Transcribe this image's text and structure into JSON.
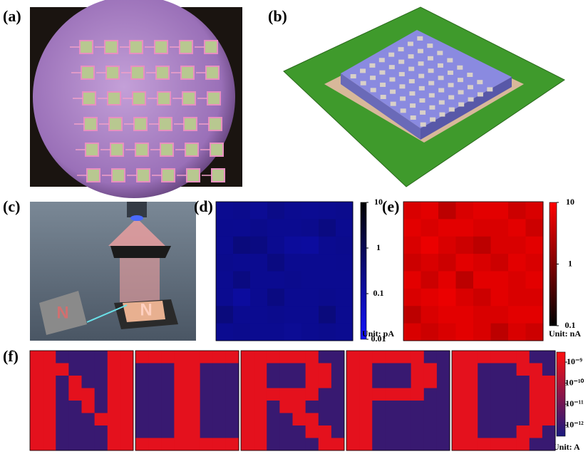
{
  "panels": [
    {
      "label": "(a)"
    },
    {
      "label": "(b)"
    },
    {
      "label": "(c)",
      "illustration_texts": [
        "N",
        "N"
      ]
    },
    {
      "label": "(d)",
      "colorbar": {
        "colors": [
          "#1414ff",
          "#000000"
        ],
        "clim": [
          0.01,
          10
        ],
        "log": true,
        "ticks": [
          10,
          1,
          0.1,
          0.01
        ],
        "unit": "Unit: pA"
      },
      "grid": [
        [
          0.2,
          0.22,
          0.18,
          0.25,
          0.2,
          0.19,
          0.2,
          0.22
        ],
        [
          0.21,
          0.2,
          0.23,
          0.2,
          0.2,
          0.22,
          0.3,
          0.2
        ],
        [
          0.2,
          0.35,
          0.3,
          0.2,
          0.15,
          0.14,
          0.2,
          0.22
        ],
        [
          0.22,
          0.2,
          0.2,
          0.3,
          0.2,
          0.2,
          0.2,
          0.21
        ],
        [
          0.2,
          0.3,
          0.2,
          0.2,
          0.22,
          0.2,
          0.2,
          0.2
        ],
        [
          0.2,
          0.14,
          0.2,
          0.3,
          0.2,
          0.2,
          0.22,
          0.2
        ],
        [
          0.35,
          0.2,
          0.2,
          0.22,
          0.2,
          0.2,
          0.35,
          0.2
        ],
        [
          0.2,
          0.22,
          0.2,
          0.2,
          0.18,
          0.2,
          0.22,
          0.2
        ]
      ]
    },
    {
      "label": "(e)",
      "colorbar": {
        "colors": [
          "#000000",
          "#ff0000"
        ],
        "clim": [
          0.1,
          10
        ],
        "log": true,
        "ticks": [
          10,
          1,
          0.1
        ],
        "unit": "Unit: nA"
      },
      "grid": [
        [
          5,
          6,
          3,
          5,
          6,
          6,
          4,
          5
        ],
        [
          6,
          5,
          6,
          6,
          5,
          5,
          6,
          4
        ],
        [
          5,
          7,
          5,
          4,
          3,
          5,
          5,
          6
        ],
        [
          4,
          5,
          4,
          6,
          5,
          4,
          6,
          5
        ],
        [
          6,
          4,
          6,
          3,
          6,
          6,
          5,
          6
        ],
        [
          5,
          6,
          7,
          5,
          4,
          6,
          5,
          5
        ],
        [
          3,
          5,
          6,
          6,
          5,
          5,
          6,
          6
        ],
        [
          5,
          4,
          5,
          6,
          5,
          3,
          5,
          4
        ]
      ]
    },
    {
      "label": "(f)",
      "colorbar": {
        "colors": [
          "#1a1a80",
          "#ff1010"
        ],
        "clim": [
          3e-13,
          3e-09
        ],
        "log": true,
        "ticks": [
          {
            "value": 1e-09,
            "label": "10⁻⁹"
          },
          {
            "value": 1e-10,
            "label": "10⁻¹⁰"
          },
          {
            "value": 1e-11,
            "label": "10⁻¹¹"
          },
          {
            "value": 1e-12,
            "label": "10⁻¹²"
          }
        ],
        "unit": "Unit: A"
      },
      "maps": [
        [
          [
            1e-09,
            1e-09,
            1e-12,
            1e-12,
            1e-12,
            1e-12,
            1e-09,
            1e-09
          ],
          [
            1e-09,
            1e-09,
            1e-09,
            1e-12,
            1e-12,
            1e-12,
            1e-09,
            1e-09
          ],
          [
            1e-09,
            1e-09,
            1e-12,
            1e-09,
            1e-12,
            1e-12,
            1e-09,
            1e-09
          ],
          [
            1e-09,
            1e-09,
            1e-12,
            1e-09,
            1e-09,
            1e-12,
            1e-09,
            1e-09
          ],
          [
            1e-09,
            1e-09,
            1e-12,
            1e-12,
            1e-09,
            1e-12,
            1e-09,
            1e-09
          ],
          [
            1e-09,
            1e-09,
            1e-12,
            1e-12,
            1e-12,
            1e-09,
            1e-09,
            1e-09
          ],
          [
            1e-09,
            1e-09,
            1e-12,
            1e-12,
            1e-12,
            1e-12,
            1e-09,
            1e-09
          ],
          [
            1e-09,
            1e-09,
            1e-12,
            1e-12,
            1e-12,
            1e-12,
            1e-09,
            1e-09
          ]
        ],
        [
          [
            1e-09,
            1e-09,
            1e-09,
            1e-09,
            1e-09,
            1e-09,
            1e-09,
            1e-09
          ],
          [
            1e-12,
            1e-12,
            1e-12,
            1e-09,
            1e-09,
            1e-12,
            1e-12,
            1e-12
          ],
          [
            1e-12,
            1e-12,
            1e-12,
            1e-09,
            1e-09,
            1e-12,
            1e-12,
            1e-12
          ],
          [
            1e-12,
            1e-12,
            1e-12,
            1e-09,
            1e-09,
            1e-12,
            1e-12,
            1e-12
          ],
          [
            1e-12,
            1e-12,
            1e-12,
            1e-09,
            1e-09,
            1e-12,
            1e-12,
            1e-12
          ],
          [
            1e-12,
            1e-12,
            1e-12,
            1e-09,
            1e-09,
            1e-12,
            1e-12,
            1e-12
          ],
          [
            1e-12,
            1e-12,
            1e-12,
            1e-09,
            1e-09,
            1e-12,
            1e-12,
            1e-12
          ],
          [
            1e-09,
            1e-09,
            1e-09,
            1e-09,
            1e-09,
            1e-09,
            1e-09,
            1e-09
          ]
        ],
        [
          [
            1e-09,
            1e-09,
            1e-09,
            1e-09,
            1e-09,
            1e-09,
            1e-12,
            1e-12
          ],
          [
            1e-09,
            1e-09,
            1e-12,
            1e-12,
            1e-12,
            1e-09,
            1e-09,
            1e-12
          ],
          [
            1e-09,
            1e-09,
            1e-12,
            1e-12,
            1e-12,
            1e-09,
            1e-09,
            1e-12
          ],
          [
            1e-09,
            1e-09,
            1e-09,
            1e-09,
            1e-09,
            1e-09,
            1e-12,
            1e-12
          ],
          [
            1e-09,
            1e-09,
            1e-12,
            1e-09,
            1e-09,
            1e-12,
            1e-12,
            1e-12
          ],
          [
            1e-09,
            1e-09,
            1e-12,
            1e-12,
            1e-09,
            1e-09,
            1e-12,
            1e-12
          ],
          [
            1e-09,
            1e-09,
            1e-12,
            1e-12,
            1e-12,
            1e-09,
            1e-09,
            1e-12
          ],
          [
            1e-09,
            1e-09,
            1e-12,
            1e-12,
            1e-12,
            1e-12,
            1e-09,
            1e-09
          ]
        ],
        [
          [
            1e-09,
            1e-09,
            1e-09,
            1e-09,
            1e-09,
            1e-09,
            1e-12,
            1e-12
          ],
          [
            1e-09,
            1e-09,
            1e-12,
            1e-12,
            1e-12,
            1e-09,
            1e-09,
            1e-12
          ],
          [
            1e-09,
            1e-09,
            1e-12,
            1e-12,
            1e-12,
            1e-09,
            1e-09,
            1e-12
          ],
          [
            1e-09,
            1e-09,
            1e-09,
            1e-09,
            1e-09,
            1e-09,
            1e-12,
            1e-12
          ],
          [
            1e-09,
            1e-09,
            1e-12,
            1e-12,
            1e-12,
            1e-12,
            1e-12,
            1e-12
          ],
          [
            1e-09,
            1e-09,
            1e-12,
            1e-12,
            1e-12,
            1e-12,
            1e-12,
            1e-12
          ],
          [
            1e-09,
            1e-09,
            1e-12,
            1e-12,
            1e-12,
            1e-12,
            1e-12,
            1e-12
          ],
          [
            1e-09,
            1e-09,
            1e-12,
            1e-12,
            1e-12,
            1e-12,
            1e-12,
            1e-12
          ]
        ],
        [
          [
            1e-09,
            1e-09,
            1e-09,
            1e-09,
            1e-09,
            1e-09,
            1e-12,
            1e-12
          ],
          [
            1e-09,
            1e-09,
            1e-12,
            1e-12,
            1e-12,
            1e-09,
            1e-09,
            1e-12
          ],
          [
            1e-09,
            1e-09,
            1e-12,
            1e-12,
            1e-12,
            1e-12,
            1e-09,
            1e-09
          ],
          [
            1e-09,
            1e-09,
            1e-12,
            1e-12,
            1e-12,
            1e-12,
            1e-09,
            1e-09
          ],
          [
            1e-09,
            1e-09,
            1e-12,
            1e-12,
            1e-12,
            1e-12,
            1e-09,
            1e-09
          ],
          [
            1e-09,
            1e-09,
            1e-12,
            1e-12,
            1e-12,
            1e-12,
            1e-09,
            1e-09
          ],
          [
            1e-09,
            1e-09,
            1e-12,
            1e-12,
            1e-12,
            1e-09,
            1e-09,
            1e-12
          ],
          [
            1e-09,
            1e-09,
            1e-09,
            1e-09,
            1e-09,
            1e-09,
            1e-12,
            1e-12
          ]
        ]
      ]
    }
  ]
}
